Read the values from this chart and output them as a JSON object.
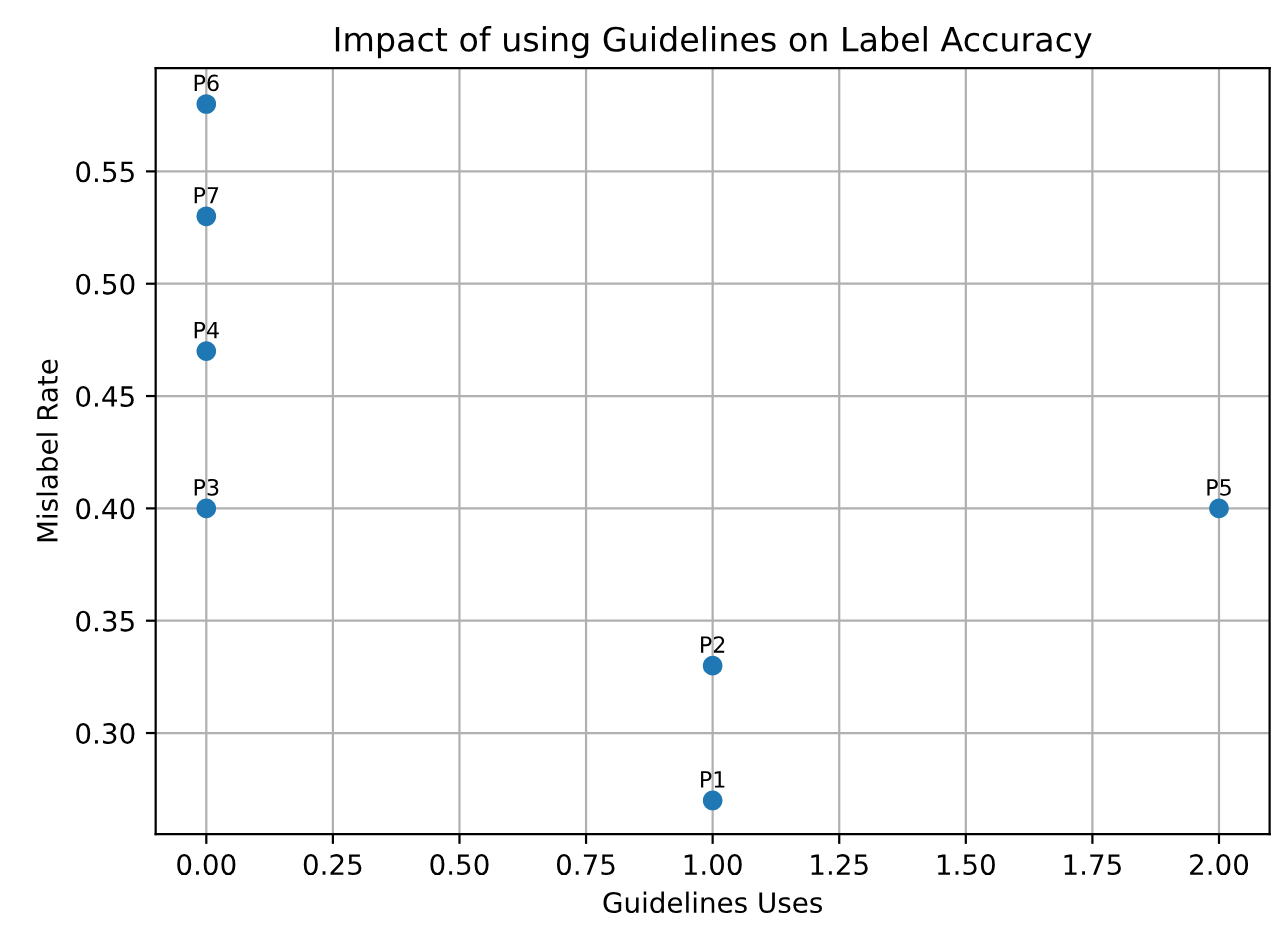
{
  "chart_data": {
    "type": "scatter",
    "title": "Impact of using Guidelines on Label Accuracy",
    "xlabel": "Guidelines Uses",
    "ylabel": "Mislabel Rate",
    "series": [
      {
        "color": "#1f77b4",
        "x": [
          1,
          1,
          0,
          0,
          2,
          0,
          0
        ],
        "values": [
          0.27,
          0.33,
          0.4,
          0.47,
          0.4,
          0.58,
          0.53
        ]
      }
    ],
    "annotations": [
      {
        "text": "P1",
        "x": 1,
        "y": 0.27
      },
      {
        "text": "P2",
        "x": 1,
        "y": 0.33
      },
      {
        "text": "P3",
        "x": 0,
        "y": 0.4
      },
      {
        "text": "P4",
        "x": 0,
        "y": 0.47
      },
      {
        "text": "P5",
        "x": 2,
        "y": 0.4
      },
      {
        "text": "P6",
        "x": 0,
        "y": 0.58
      },
      {
        "text": "P7",
        "x": 0,
        "y": 0.53
      }
    ],
    "xlim": [
      -0.1,
      2.1
    ],
    "ylim": [
      0.255,
      0.596
    ],
    "xticks": [
      {
        "value": 0,
        "label": "0.00"
      },
      {
        "value": 0.25,
        "label": "0.25"
      },
      {
        "value": 0.5,
        "label": "0.50"
      },
      {
        "value": 0.75,
        "label": "0.75"
      },
      {
        "value": 1,
        "label": "1.00"
      },
      {
        "value": 1.25,
        "label": "1.25"
      },
      {
        "value": 1.5,
        "label": "1.50"
      },
      {
        "value": 1.75,
        "label": "1.75"
      },
      {
        "value": 2,
        "label": "2.00"
      }
    ],
    "yticks": [
      {
        "value": 0.3,
        "label": "0.30"
      },
      {
        "value": 0.35,
        "label": "0.35"
      },
      {
        "value": 0.4,
        "label": "0.40"
      },
      {
        "value": 0.45,
        "label": "0.45"
      },
      {
        "value": 0.5,
        "label": "0.50"
      },
      {
        "value": 0.55,
        "label": "0.55"
      }
    ],
    "grid": true,
    "marker": "circle"
  }
}
